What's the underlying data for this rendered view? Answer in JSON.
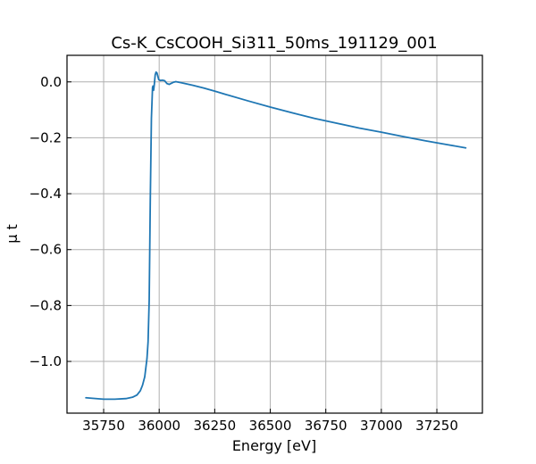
{
  "chart_data": {
    "type": "line",
    "title": "Cs-K_CsCOOH_Si311_50ms_191129_001",
    "xlabel": "Energy [eV]",
    "ylabel": "μ t",
    "xlim": [
      35585,
      37455
    ],
    "ylim": [
      -1.185,
      0.095
    ],
    "x_ticks": [
      35750,
      36000,
      36250,
      36500,
      36750,
      37000,
      37250
    ],
    "x_tick_labels": [
      "35750",
      "36000",
      "36250",
      "36500",
      "36750",
      "37000",
      "37250"
    ],
    "y_ticks": [
      0.0,
      -0.2,
      -0.4,
      -0.6,
      -0.8,
      -1.0
    ],
    "y_tick_labels": [
      "0.0",
      "−0.2",
      "−0.4",
      "−0.6",
      "−0.8",
      "−1.0"
    ],
    "grid": true,
    "color": "#1f77b4",
    "series": [
      {
        "x": [
          35670,
          35700,
          35750,
          35800,
          35850,
          35880,
          35900,
          35915,
          35925,
          35935,
          35945,
          35950,
          35955,
          35960,
          35965,
          35970,
          35972,
          35975,
          35978,
          35982,
          35986,
          35990,
          35994,
          35998,
          36005,
          36015,
          36025,
          36035,
          36045,
          36055,
          36065,
          36075,
          36100,
          36150,
          36200,
          36250,
          36300,
          36400,
          36500,
          36600,
          36700,
          36800,
          36900,
          37000,
          37100,
          37200,
          37300,
          37380
        ],
        "y": [
          -1.13,
          -1.132,
          -1.135,
          -1.135,
          -1.133,
          -1.128,
          -1.12,
          -1.105,
          -1.085,
          -1.055,
          -0.99,
          -0.93,
          -0.78,
          -0.42,
          -0.13,
          -0.02,
          -0.015,
          -0.03,
          -0.01,
          0.025,
          0.035,
          0.032,
          0.02,
          0.008,
          0.005,
          0.006,
          0.004,
          -0.006,
          -0.009,
          -0.005,
          -0.001,
          0.001,
          -0.003,
          -0.012,
          -0.022,
          -0.033,
          -0.045,
          -0.068,
          -0.09,
          -0.111,
          -0.131,
          -0.148,
          -0.165,
          -0.18,
          -0.196,
          -0.211,
          -0.225,
          -0.236
        ]
      }
    ]
  }
}
